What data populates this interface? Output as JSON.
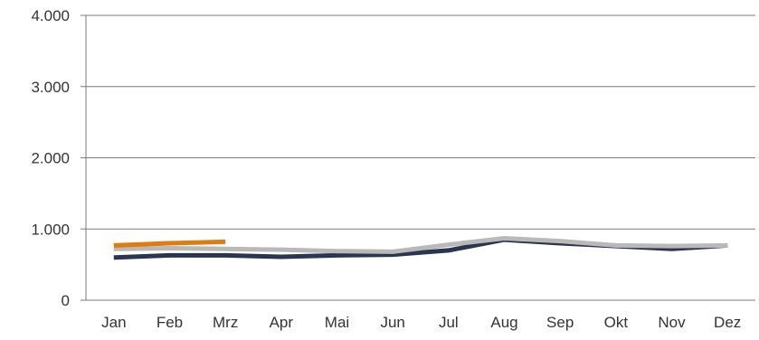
{
  "chart_data": {
    "type": "line",
    "title": "",
    "xlabel": "",
    "ylabel": "",
    "categories": [
      "Jan",
      "Feb",
      "Mrz",
      "Apr",
      "Mai",
      "Jun",
      "Jul",
      "Aug",
      "Sep",
      "Okt",
      "Nov",
      "Dez"
    ],
    "ylim": [
      0,
      4000
    ],
    "y_ticks": [
      0,
      1000,
      2000,
      3000,
      4000
    ],
    "y_tick_labels": [
      "0",
      "1.000",
      "2.000",
      "3.000",
      "4.000"
    ],
    "grid": "horizontal",
    "legend": "none",
    "series": [
      {
        "color": "#2b3550",
        "values": [
          600,
          630,
          630,
          610,
          630,
          640,
          700,
          850,
          800,
          760,
          720,
          770
        ]
      },
      {
        "color": "#b9b9b9",
        "values": [
          720,
          730,
          720,
          710,
          690,
          680,
          780,
          870,
          830,
          770,
          760,
          770
        ]
      },
      {
        "color": "#e07b12",
        "values": [
          770,
          800,
          820,
          null,
          null,
          null,
          null,
          null,
          null,
          null,
          null,
          null
        ]
      }
    ]
  }
}
